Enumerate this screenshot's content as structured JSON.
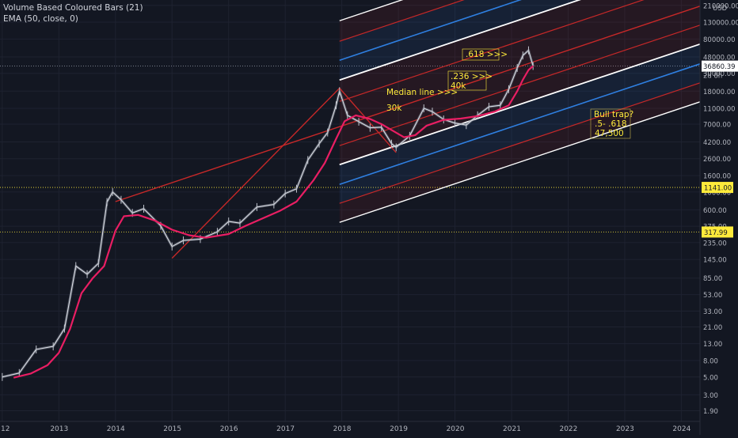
{
  "indicators": {
    "volume_bars": "Volume Based Coloured Bars (21)",
    "ema": "EMA (50, close, 0)"
  },
  "price_axis": {
    "currency": "USD",
    "ticks": [
      "210000.00",
      "130000.00",
      "80000.00",
      "48000.00",
      "30000.00",
      "18000.00",
      "11000.00",
      "7000.00",
      "4200.00",
      "2600.00",
      "1600.00",
      "1000.00",
      "600.00",
      "375.00",
      "235.00",
      "145.00",
      "85.00",
      "53.00",
      "33.00",
      "21.00",
      "13.00",
      "8.00",
      "5.00",
      "3.00",
      "1.90"
    ],
    "current_price": "36860.39",
    "countdown": "2d 8h",
    "level_1": "1141.00",
    "level_2": "317.99"
  },
  "time_axis": {
    "ticks": [
      "12",
      "2013",
      "2014",
      "2015",
      "2016",
      "2017",
      "2018",
      "2019",
      "2020",
      "2021",
      "2022",
      "2023",
      "2024"
    ]
  },
  "annotations": {
    "median_line": "Median line >>>",
    "k30": "30k",
    "fib236": ".236 >>>",
    "k40": "40k",
    "fib618": ".618 >>>",
    "bull_trap_line1": "Bull trap?",
    "bull_trap_line2": ".5- .618",
    "bull_trap_line3": "47,500"
  },
  "colors": {
    "background": "#131722",
    "ema": "#e91e63",
    "pitchfork_red": "#c62828",
    "pitchfork_blue": "#2f7fe0",
    "pitchfork_white": "#ffffff",
    "annotation_text": "#ffeb3b",
    "level_line": "#ffeb3b"
  },
  "chart_data": {
    "type": "line",
    "scale": "log",
    "x_unit": "year",
    "xlim": [
      2011.96,
      2024.33
    ],
    "ylim": [
      1.4,
      245000
    ],
    "series": [
      {
        "key": "price",
        "x": [
          2012.0,
          2012.3,
          2012.6,
          2012.9,
          2013.1,
          2013.3,
          2013.5,
          2013.7,
          2013.85,
          2013.95,
          2014.1,
          2014.3,
          2014.5,
          2014.8,
          2015.0,
          2015.2,
          2015.5,
          2015.8,
          2016.0,
          2016.2,
          2016.5,
          2016.8,
          2017.0,
          2017.2,
          2017.4,
          2017.6,
          2017.75,
          2017.9,
          2017.96,
          2018.1,
          2018.3,
          2018.5,
          2018.7,
          2018.88,
          2018.96,
          2019.2,
          2019.45,
          2019.6,
          2019.8,
          2020.0,
          2020.2,
          2020.4,
          2020.6,
          2020.8,
          2020.95,
          2021.1,
          2021.2,
          2021.3,
          2021.38
        ],
        "y": [
          5,
          5.6,
          11,
          12,
          20,
          120,
          95,
          130,
          750,
          1000,
          800,
          550,
          620,
          380,
          210,
          250,
          260,
          320,
          430,
          410,
          650,
          700,
          960,
          1100,
          2500,
          4000,
          5500,
          12000,
          18000,
          9000,
          7500,
          6300,
          6400,
          4000,
          3600,
          5000,
          11000,
          10000,
          8000,
          7200,
          6800,
          9000,
          11500,
          12000,
          19000,
          35000,
          50000,
          58000,
          37000
        ]
      },
      {
        "key": "ema50",
        "x": [
          2012.2,
          2012.5,
          2012.8,
          2013.0,
          2013.2,
          2013.4,
          2013.6,
          2013.8,
          2014.0,
          2014.15,
          2014.4,
          2014.7,
          2015.0,
          2015.3,
          2015.6,
          2016.0,
          2016.3,
          2016.6,
          2016.9,
          2017.2,
          2017.5,
          2017.7,
          2017.9,
          2018.05,
          2018.25,
          2018.5,
          2018.7,
          2018.9,
          2019.1,
          2019.3,
          2019.5,
          2019.8,
          2020.1,
          2020.4,
          2020.7,
          2020.95,
          2021.1,
          2021.2,
          2021.3,
          2021.38
        ],
        "y": [
          4.9,
          5.5,
          7.0,
          10,
          20,
          55,
          85,
          120,
          330,
          500,
          520,
          440,
          340,
          290,
          270,
          300,
          380,
          470,
          580,
          760,
          1400,
          2300,
          4600,
          7600,
          9000,
          8100,
          7000,
          5800,
          4800,
          5100,
          6700,
          7900,
          8200,
          8800,
          10000,
          12000,
          18000,
          25000,
          33000,
          37000
        ]
      },
      {
        "key": "pitchfork_handle",
        "x": [
          2015.0,
          2017.96
        ],
        "y": [
          150,
          19600
        ]
      },
      {
        "key": "pitchfork_median",
        "x": [
          2014.0,
          2021.9
        ],
        "y": [
          760,
          55000
        ]
      }
    ]
  }
}
